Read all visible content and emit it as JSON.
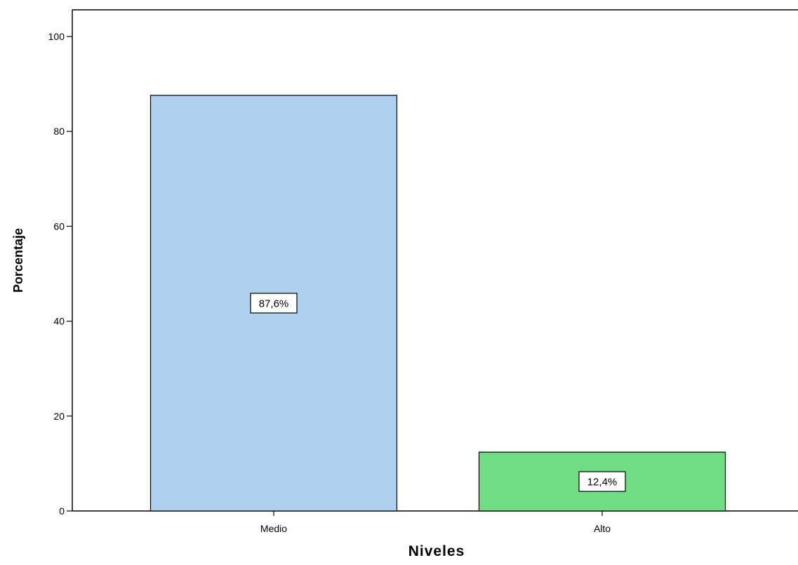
{
  "chart_data": {
    "type": "bar",
    "categories": [
      "Medio",
      "Alto"
    ],
    "values": [
      87.6,
      12.4
    ],
    "data_labels": [
      "87,6%",
      "12,4%"
    ],
    "colors": [
      "#aed0ee",
      "#70dc84"
    ],
    "title": "",
    "xlabel": "Niveles",
    "ylabel": "Porcentaje",
    "ylim": [
      0,
      100
    ],
    "yticks": [
      0,
      20,
      40,
      60,
      80,
      100
    ],
    "grid": false,
    "legend": "none"
  }
}
